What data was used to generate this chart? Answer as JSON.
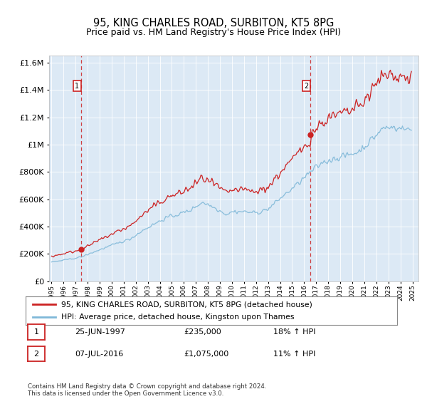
{
  "title": "95, KING CHARLES ROAD, SURBITON, KT5 8PG",
  "subtitle": "Price paid vs. HM Land Registry's House Price Index (HPI)",
  "legend_line1": "95, KING CHARLES ROAD, SURBITON, KT5 8PG (detached house)",
  "legend_line2": "HPI: Average price, detached house, Kingston upon Thames",
  "annotation1_label": "1",
  "annotation1_date": "25-JUN-1997",
  "annotation1_price": "£235,000",
  "annotation1_hpi": "18% ↑ HPI",
  "annotation2_label": "2",
  "annotation2_date": "07-JUL-2016",
  "annotation2_price": "£1,075,000",
  "annotation2_hpi": "11% ↑ HPI",
  "footnote": "Contains HM Land Registry data © Crown copyright and database right 2024.\nThis data is licensed under the Open Government Licence v3.0.",
  "hpi_color": "#7fb8d8",
  "price_color": "#cc2222",
  "dashed_line_color": "#cc2222",
  "background_color": "#dce9f5",
  "purchase1_x": 1997.48,
  "purchase1_y": 235000,
  "purchase2_x": 2016.52,
  "purchase2_y": 1075000,
  "ylim": [
    0,
    1650000
  ],
  "xlim": [
    1994.8,
    2025.5
  ]
}
